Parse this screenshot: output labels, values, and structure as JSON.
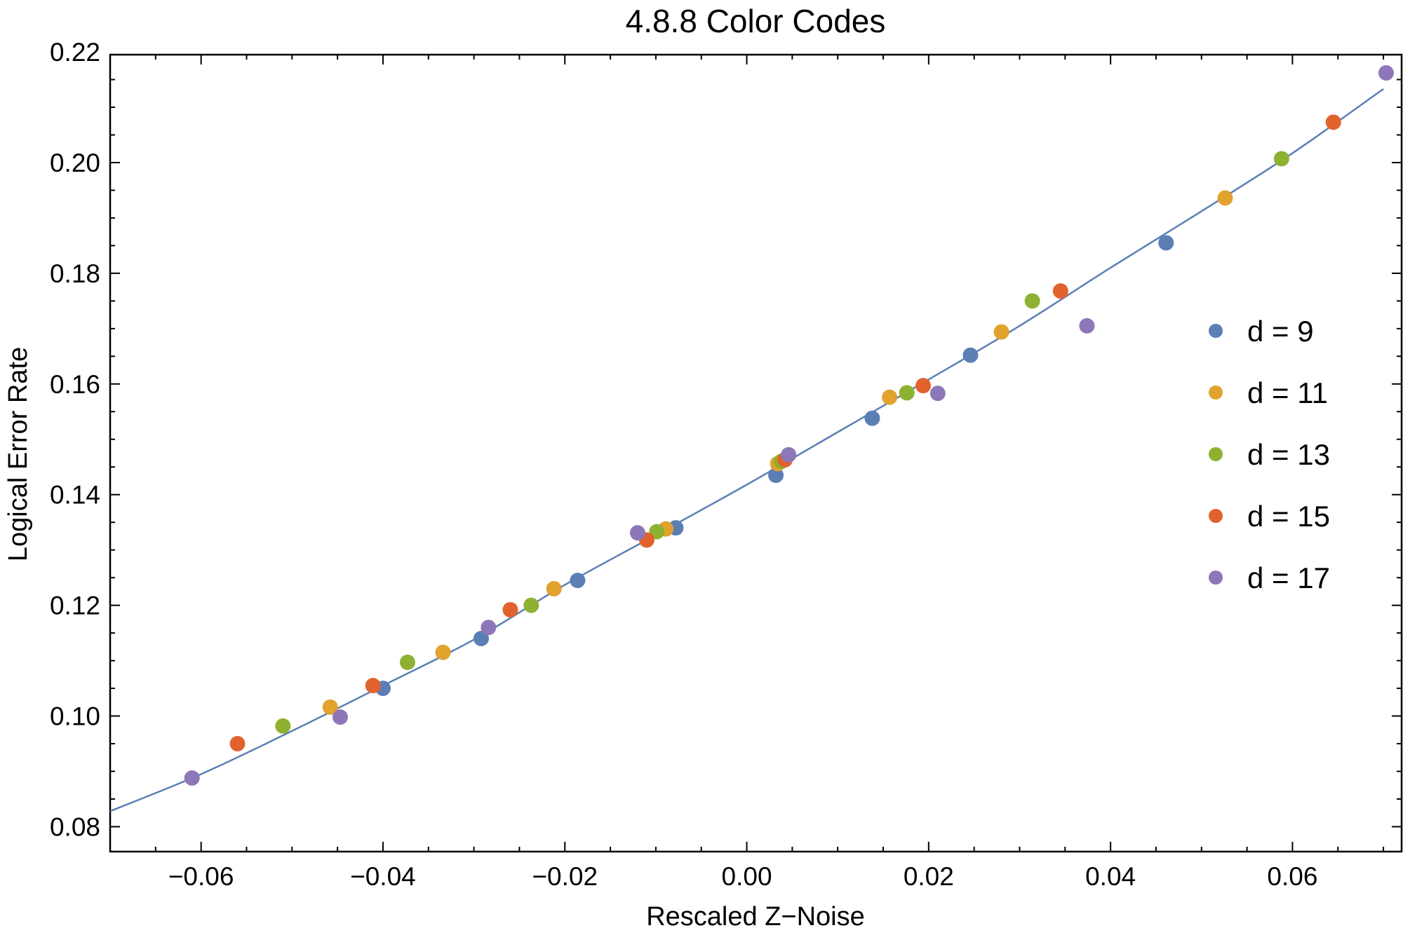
{
  "chart_data": {
    "type": "scatter",
    "title": "4.8.8 Color Codes",
    "xlabel": "Rescaled Z−Noise",
    "ylabel": "Logical Error Rate",
    "xlim": [
      -0.07,
      0.072
    ],
    "ylim": [
      0.0755,
      0.2195
    ],
    "xticks": [
      -0.06,
      -0.04,
      -0.02,
      0.0,
      0.02,
      0.04,
      0.06
    ],
    "xtick_labels": [
      "−0.06",
      "−0.04",
      "−0.02",
      "0.00",
      "0.02",
      "0.04",
      "0.06"
    ],
    "yticks": [
      0.08,
      0.1,
      0.12,
      0.14,
      0.16,
      0.18,
      0.2,
      0.22
    ],
    "ytick_labels": [
      "0.08",
      "0.10",
      "0.12",
      "0.14",
      "0.16",
      "0.18",
      "0.20",
      "0.22"
    ],
    "legend_position": "right",
    "series": [
      {
        "name": "d = 9",
        "color": "#5b7fb5",
        "points": [
          [
            -0.04,
            0.105
          ],
          [
            -0.0292,
            0.114
          ],
          [
            -0.0186,
            0.1245
          ],
          [
            -0.0078,
            0.134
          ],
          [
            0.0032,
            0.1435
          ],
          [
            0.0138,
            0.1538
          ],
          [
            0.0246,
            0.1652
          ],
          [
            0.0461,
            0.1855
          ]
        ]
      },
      {
        "name": "d = 11",
        "color": "#e2a22e",
        "points": [
          [
            -0.0458,
            0.1016
          ],
          [
            -0.0334,
            0.1115
          ],
          [
            -0.0212,
            0.123
          ],
          [
            -0.0089,
            0.1338
          ],
          [
            0.0034,
            0.1456
          ],
          [
            0.0157,
            0.1576
          ],
          [
            0.028,
            0.1694
          ],
          [
            0.0526,
            0.1936
          ]
        ]
      },
      {
        "name": "d = 13",
        "color": "#8fb132",
        "points": [
          [
            -0.051,
            0.0982
          ],
          [
            -0.0373,
            0.1097
          ],
          [
            -0.0237,
            0.12
          ],
          [
            -0.0099,
            0.1333
          ],
          [
            0.0038,
            0.146
          ],
          [
            0.0176,
            0.1584
          ],
          [
            0.0314,
            0.175
          ],
          [
            0.0588,
            0.2007
          ]
        ]
      },
      {
        "name": "d = 15",
        "color": "#e2622e",
        "points": [
          [
            -0.056,
            0.095
          ],
          [
            -0.0411,
            0.1055
          ],
          [
            -0.026,
            0.1192
          ],
          [
            -0.011,
            0.1318
          ],
          [
            0.0042,
            0.1463
          ],
          [
            0.0194,
            0.1597
          ],
          [
            0.0345,
            0.1768
          ],
          [
            0.0645,
            0.2073
          ]
        ]
      },
      {
        "name": "d = 17",
        "color": "#8d77b8",
        "points": [
          [
            -0.061,
            0.0888
          ],
          [
            -0.0447,
            0.0998
          ],
          [
            -0.0284,
            0.116
          ],
          [
            -0.012,
            0.1331
          ],
          [
            0.0046,
            0.1472
          ],
          [
            0.021,
            0.1583
          ],
          [
            0.0374,
            0.1705
          ],
          [
            0.0703,
            0.2162
          ]
        ]
      }
    ],
    "fit_line": {
      "color": "#5b7fb5",
      "points": [
        [
          -0.07,
          0.0828
        ],
        [
          -0.06,
          0.0895
        ],
        [
          -0.05,
          0.0973
        ],
        [
          -0.04,
          0.1055
        ],
        [
          -0.03,
          0.1138
        ],
        [
          -0.02,
          0.1237
        ],
        [
          -0.01,
          0.1327
        ],
        [
          0.0,
          0.1418
        ],
        [
          0.01,
          0.1513
        ],
        [
          0.02,
          0.1608
        ],
        [
          0.03,
          0.1705
        ],
        [
          0.04,
          0.181
        ],
        [
          0.05,
          0.1912
        ],
        [
          0.06,
          0.2017
        ],
        [
          0.07,
          0.2133
        ]
      ]
    }
  }
}
